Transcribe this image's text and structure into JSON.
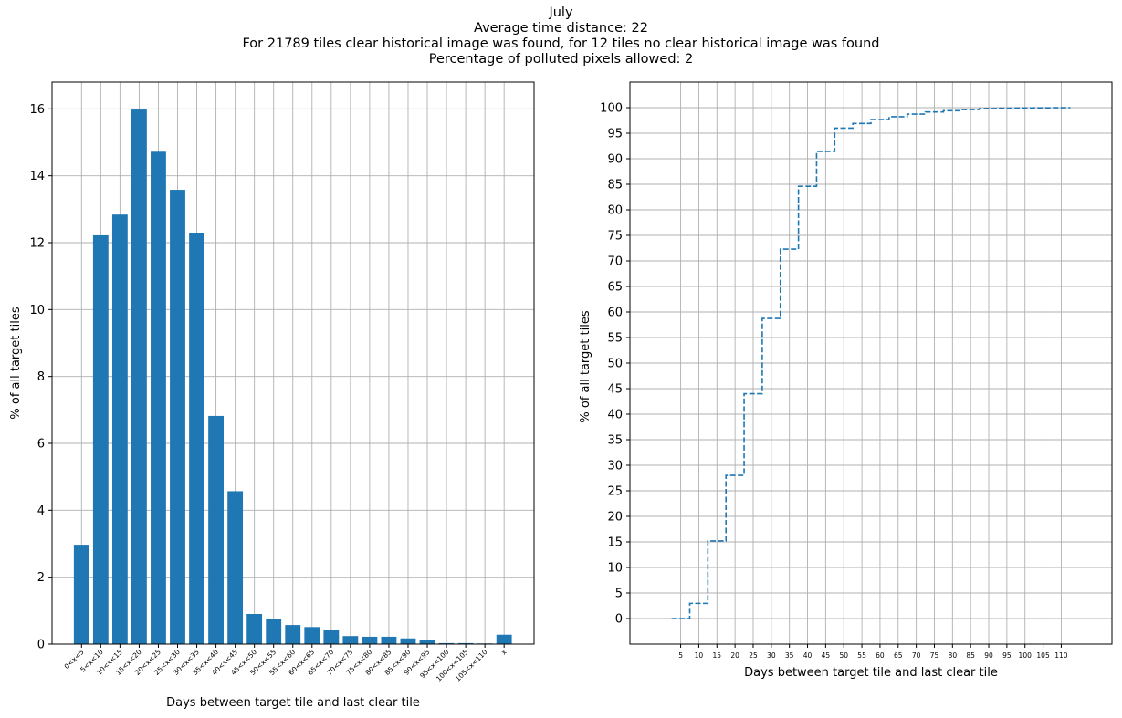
{
  "figure": {
    "title_lines": [
      "July",
      "Average time distance: 22",
      "For 21789 tiles clear historical image was found, for 12 tiles no clear historical image was found",
      "Percentage of polluted pixels allowed: 2"
    ]
  },
  "chart_data": [
    {
      "type": "bar",
      "xlabel": "Days between target tile and last clear tile",
      "ylabel": "% of all target tiles",
      "categories": [
        "0<x<5",
        "5<x<10",
        "10<x<15",
        "15<x<20",
        "20<x<25",
        "25<x<30",
        "30<x<35",
        "35<x<40",
        "40<x<45",
        "45<x<50",
        "50<x<55",
        "55<x<60",
        "60<x<65",
        "65<x<70",
        "70<x<75",
        "75<x<80",
        "80<x<85",
        "85<x<90",
        "90<x<95",
        "95<x<100",
        "100<x<105",
        "105<x<110",
        "x"
      ],
      "values": [
        2.97,
        12.22,
        12.84,
        15.98,
        14.72,
        13.58,
        12.3,
        6.82,
        4.57,
        0.9,
        0.76,
        0.57,
        0.51,
        0.42,
        0.24,
        0.22,
        0.22,
        0.17,
        0.11,
        0.03,
        0.03,
        0.02,
        0.28
      ],
      "yticks": [
        0,
        2,
        4,
        6,
        8,
        10,
        12,
        14,
        16
      ],
      "ylim": [
        0,
        16.8
      ],
      "grid": true,
      "color": "#1f77b4"
    },
    {
      "type": "line",
      "style": "dashed step",
      "xlabel": "Days between target tile and last clear tile",
      "ylabel": "% of all target tiles",
      "x": [
        2.5,
        7.5,
        12.5,
        17.5,
        22.5,
        27.5,
        32.5,
        37.5,
        42.5,
        47.5,
        52.5,
        57.5,
        62.5,
        67.5,
        72.5,
        77.5,
        82.5,
        87.5,
        92.5,
        97.5,
        102.5,
        107.5,
        112.5
      ],
      "y": [
        0,
        2.97,
        15.19,
        28.03,
        44.01,
        58.73,
        72.31,
        84.61,
        91.43,
        96.0,
        96.9,
        97.66,
        98.23,
        98.74,
        99.16,
        99.4,
        99.62,
        99.84,
        99.91,
        99.94,
        99.97,
        99.98,
        99.98
      ],
      "xticks": [
        5,
        10,
        15,
        20,
        25,
        30,
        35,
        40,
        45,
        50,
        55,
        60,
        65,
        70,
        75,
        80,
        85,
        90,
        95,
        100,
        105,
        110
      ],
      "yticks": [
        0,
        5,
        10,
        15,
        20,
        25,
        30,
        35,
        40,
        45,
        50,
        55,
        60,
        65,
        70,
        75,
        80,
        85,
        90,
        95,
        100
      ],
      "xlim": [
        -9,
        124
      ],
      "ylim": [
        -5,
        105
      ],
      "grid": true,
      "color": "#1f77b4"
    }
  ]
}
